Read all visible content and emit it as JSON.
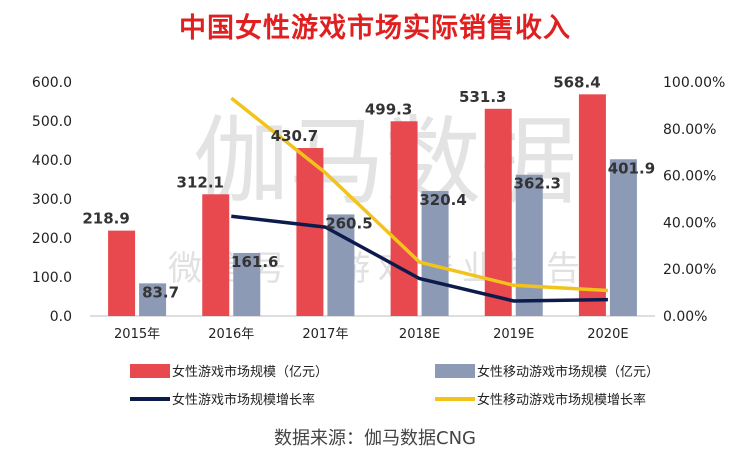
{
  "chart_data": {
    "type": "bar",
    "title": "中国女性游戏市场实际销售收入",
    "categories": [
      "2015年",
      "2016年",
      "2017年",
      "2018E",
      "2019E",
      "2020E"
    ],
    "series": [
      {
        "name": "女性游戏市场规模（亿元）",
        "kind": "bar",
        "axis": "left",
        "color": "#e8494e",
        "values": [
          218.9,
          312.1,
          430.7,
          499.3,
          531.3,
          568.4
        ],
        "labels": [
          "218.9",
          "312.1",
          "430.7",
          "499.3",
          "531.3",
          "568.4"
        ]
      },
      {
        "name": "女性移动游戏市场规模（亿元）",
        "kind": "bar",
        "axis": "left",
        "color": "#8d9ab5",
        "values": [
          83.7,
          161.6,
          260.5,
          320.4,
          362.3,
          401.9
        ],
        "labels": [
          "83.7",
          "161.6",
          "260.5",
          "320.4",
          "362.3",
          "401.9"
        ]
      },
      {
        "name": "女性游戏市场规模增长率",
        "kind": "line",
        "axis": "right",
        "color": "#0d1b4c",
        "values": [
          null,
          42.6,
          38.0,
          16.0,
          6.4,
          7.0
        ]
      },
      {
        "name": "女性移动游戏市场规模增长率",
        "kind": "line",
        "axis": "right",
        "color": "#f2c31a",
        "values": [
          null,
          93.1,
          61.2,
          23.0,
          13.1,
          10.9
        ]
      }
    ],
    "y_left": {
      "min": 0,
      "max": 600,
      "ticks": [
        "0.0",
        "100.0",
        "200.0",
        "300.0",
        "400.0",
        "500.0",
        "600.0"
      ]
    },
    "y_right": {
      "min": 0,
      "max": 100,
      "ticks": [
        "0.00%",
        "20.00%",
        "40.00%",
        "60.00%",
        "80.00%",
        "100.00%"
      ]
    },
    "grid": false,
    "legend_position": "bottom"
  },
  "watermark": {
    "main": "伽马数据",
    "sub": "微信号：游戏产业报告"
  },
  "source": "数据来源：伽马数据CNG"
}
